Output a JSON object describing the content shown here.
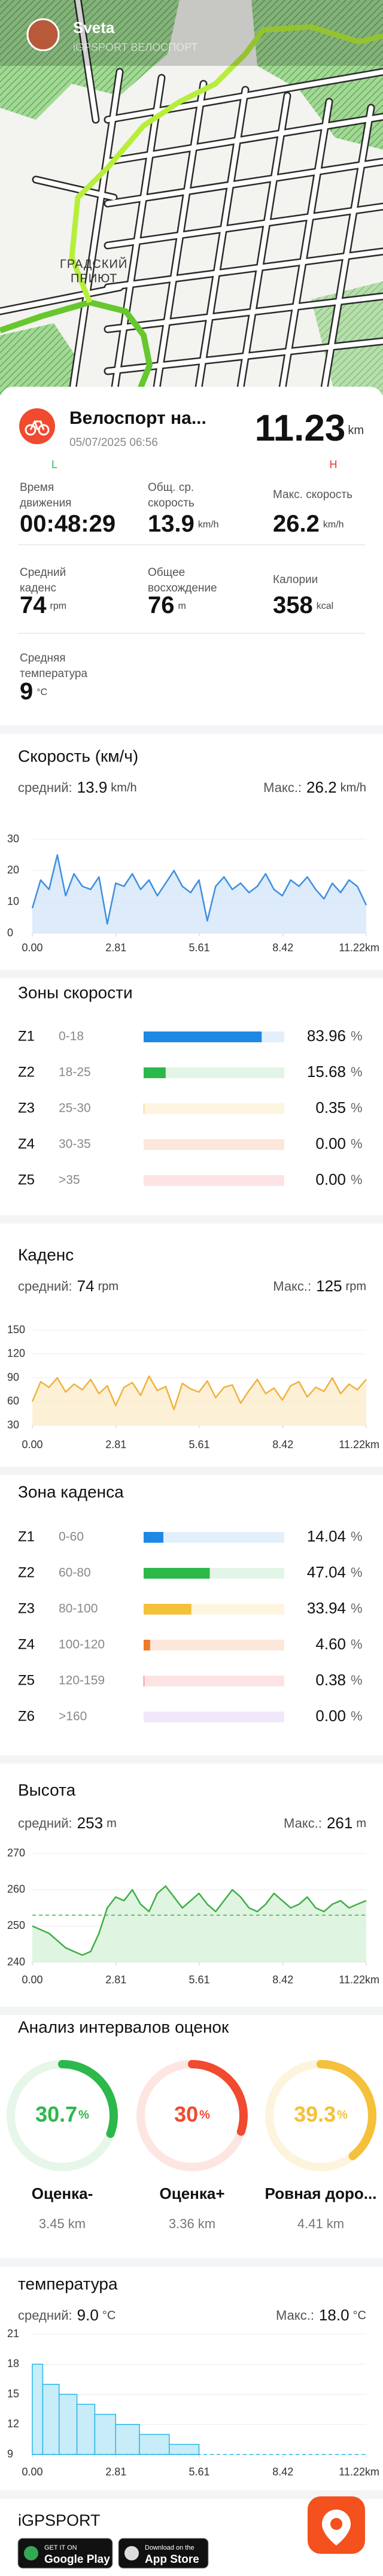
{
  "map": {
    "user": "Sveta",
    "subtitle": "iGPSPORT ВЕЛОСПОРТ",
    "place": [
      "ГРАДСКИЙ",
      "ПРИЮТ"
    ]
  },
  "activity": {
    "title": "Велоспорт на...",
    "date": "05/07/2025 06:56",
    "distance": 11.23,
    "unit": "km",
    "low": "L",
    "high": "H"
  },
  "stats": [
    {
      "label": [
        "Время",
        "движения"
      ],
      "value": "00:48:29"
    },
    {
      "label": [
        "Общ. ср.",
        "скорость"
      ],
      "value": 13.9,
      "unit": "km/h"
    },
    {
      "label": [
        "Макс. скорость"
      ],
      "value": 26.2,
      "unit": "km/h"
    },
    {
      "label": [
        "Средний",
        "каденс"
      ],
      "value": 74,
      "unit": "rpm"
    },
    {
      "label": [
        "Общее",
        "восхождение"
      ],
      "value": 76,
      "unit": "m"
    },
    {
      "label": [
        "Калории"
      ],
      "value": 358,
      "unit": "kcal"
    },
    {
      "label": [
        "Средняя",
        "температура"
      ],
      "value": 9,
      "unit": "°C"
    }
  ],
  "speed_chart": {
    "type": "area",
    "title": "Скорость (км/ч)",
    "avg_label": "средний:",
    "avg": 13.9,
    "max_label": "Макс.:",
    "max": 26.2,
    "unit": "km/h",
    "color": "#3d8fe0",
    "fill": "#cfe3f8",
    "avg_line": false,
    "grid": true,
    "x": [
      0,
      0.28,
      0.56,
      0.84,
      1.12,
      1.4,
      1.68,
      1.96,
      2.24,
      2.52,
      2.8,
      3.08,
      3.36,
      3.64,
      3.92,
      4.2,
      4.48,
      4.76,
      5.04,
      5.32,
      5.6,
      5.88,
      6.16,
      6.44,
      6.72,
      7,
      7.28,
      7.56,
      7.84,
      8.12,
      8.4,
      8.68,
      8.96,
      9.24,
      9.52,
      9.8,
      10.08,
      10.36,
      10.64,
      10.92,
      11.22
    ],
    "values": [
      8,
      17,
      14,
      25,
      12,
      19,
      15,
      14,
      18,
      3,
      16,
      15,
      19,
      14,
      17,
      12,
      16,
      20,
      15,
      13,
      17,
      4,
      15,
      18,
      14,
      16,
      13,
      15,
      19,
      14,
      12,
      17,
      15,
      18,
      14,
      11,
      16,
      13,
      17,
      15,
      9
    ],
    "xlim": [
      0,
      11.22
    ],
    "xticks": [
      {
        "value": 0,
        "label": "0.00"
      },
      2.81,
      5.61,
      8.42,
      {
        "value": 11.22,
        "label": "11.22km"
      }
    ],
    "ylim": [
      0,
      30
    ],
    "yticks": [
      0,
      10,
      20,
      30
    ]
  },
  "speed_zones": {
    "title": "Зоны скорости",
    "unit": "%",
    "zones": [
      {
        "name": "Z1",
        "range": "0-18",
        "value": 83.96,
        "value_label": "83.96",
        "color": "#1e88e5",
        "track": "#e3f0fb"
      },
      {
        "name": "Z2",
        "range": "18-25",
        "value": 15.68,
        "value_label": "15.68",
        "color": "#2db84b",
        "track": "#e3f5e6"
      },
      {
        "name": "Z3",
        "range": "25-30",
        "value": 0.35,
        "value_label": "0.35",
        "color": "#f5c03a",
        "track": "#fdf5e0"
      },
      {
        "name": "Z4",
        "range": "30-35",
        "value": 0,
        "value_label": "0.00",
        "color": "#f07a2a",
        "track": "#fde6da"
      },
      {
        "name": "Z5",
        "range": ">35",
        "value": 0,
        "value_label": "0.00",
        "color": "#f04a4a",
        "track": "#fde3e3"
      }
    ]
  },
  "cadence_chart": {
    "type": "area",
    "title": "Каденс",
    "avg_label": "средний:",
    "avg": 74,
    "max_label": "Макс.:",
    "max": 125,
    "unit": "rpm",
    "color": "#f0b23c",
    "fill": "#fbe9c6",
    "avg_line": false,
    "grid": true,
    "x": [
      0,
      0.28,
      0.56,
      0.84,
      1.12,
      1.4,
      1.68,
      1.96,
      2.24,
      2.52,
      2.8,
      3.08,
      3.36,
      3.64,
      3.92,
      4.2,
      4.48,
      4.76,
      5.04,
      5.32,
      5.6,
      5.88,
      6.16,
      6.44,
      6.72,
      7,
      7.28,
      7.56,
      7.84,
      8.12,
      8.4,
      8.68,
      8.96,
      9.24,
      9.52,
      9.8,
      10.08,
      10.36,
      10.64,
      10.92,
      11.22
    ],
    "values": [
      60,
      85,
      78,
      90,
      72,
      82,
      75,
      88,
      70,
      80,
      55,
      78,
      84,
      68,
      92,
      74,
      79,
      50,
      83,
      76,
      72,
      86,
      65,
      78,
      81,
      58,
      74,
      88,
      70,
      77,
      62,
      80,
      85,
      66,
      78,
      73,
      90,
      70,
      82,
      75,
      88
    ],
    "xlim": [
      0,
      11.22
    ],
    "xticks": [
      {
        "value": 0,
        "label": "0.00"
      },
      2.81,
      5.61,
      8.42,
      {
        "value": 11.22,
        "label": "11.22km"
      }
    ],
    "ylim": [
      30,
      150
    ],
    "yticks": [
      30,
      60,
      90,
      120,
      150
    ]
  },
  "cadence_zones": {
    "title": "Зона каденса",
    "unit": "%",
    "zones": [
      {
        "name": "Z1",
        "range": "0-60",
        "value": 14.04,
        "value_label": "14.04",
        "color": "#1e88e5",
        "track": "#e3f0fb"
      },
      {
        "name": "Z2",
        "range": "60-80",
        "value": 47.04,
        "value_label": "47.04",
        "color": "#2db84b",
        "track": "#e3f5e6"
      },
      {
        "name": "Z3",
        "range": "80-100",
        "value": 33.94,
        "value_label": "33.94",
        "color": "#f5c03a",
        "track": "#fdf5e0"
      },
      {
        "name": "Z4",
        "range": "100-120",
        "value": 4.6,
        "value_label": "4.60",
        "color": "#f07a2a",
        "track": "#fde6da"
      },
      {
        "name": "Z5",
        "range": "120-159",
        "value": 0.38,
        "value_label": "0.38",
        "color": "#f04a4a",
        "track": "#fde3e3"
      },
      {
        "name": "Z6",
        "range": ">160",
        "value": 0,
        "value_label": "0.00",
        "color": "#a864e0",
        "track": "#f1e7fb"
      }
    ]
  },
  "altitude_chart": {
    "type": "area",
    "title": "Высота",
    "avg_label": "средний:",
    "avg": 253,
    "max_label": "Макс.:",
    "max": 261,
    "unit": "m",
    "color": "#3cb043",
    "fill": "#d3efd6",
    "avg_line": true,
    "grid": true,
    "x": [
      0,
      0.28,
      0.56,
      0.84,
      1.12,
      1.4,
      1.68,
      1.96,
      2.24,
      2.52,
      2.8,
      3.08,
      3.36,
      3.64,
      3.92,
      4.2,
      4.48,
      4.76,
      5.04,
      5.32,
      5.6,
      5.88,
      6.16,
      6.44,
      6.72,
      7,
      7.28,
      7.56,
      7.84,
      8.12,
      8.4,
      8.68,
      8.96,
      9.24,
      9.52,
      9.8,
      10.08,
      10.36,
      10.64,
      10.92,
      11.22
    ],
    "values": [
      250,
      249,
      248,
      246,
      244,
      243,
      242,
      243,
      248,
      255,
      258,
      257,
      260,
      256,
      254,
      259,
      261,
      258,
      255,
      257,
      259,
      256,
      254,
      257,
      260,
      258,
      255,
      254,
      256,
      259,
      257,
      255,
      256,
      258,
      255,
      254,
      256,
      257,
      255,
      256,
      257
    ],
    "xlim": [
      0,
      11.22
    ],
    "xticks": [
      {
        "value": 0,
        "label": "0.00"
      },
      2.81,
      5.61,
      8.42,
      {
        "value": 11.22,
        "label": "11.22km"
      }
    ],
    "ylim": [
      240,
      270
    ],
    "yticks": [
      240,
      250,
      260,
      270
    ]
  },
  "grade_analysis": {
    "title": "Анализ интервалов оценок",
    "unit": "%",
    "distance_unit": "km",
    "items": [
      {
        "name": "Оценка-",
        "value": 30.7,
        "distance": 3.45,
        "color": "#2db84b",
        "track": "#e6f6e9"
      },
      {
        "name": "Оценка+",
        "value": 30,
        "distance": 3.36,
        "color": "#f04a2f",
        "track": "#fde6e2"
      },
      {
        "name": "Ровная доро...",
        "value": 39.3,
        "distance": 4.41,
        "color": "#f5c03a",
        "track": "#fdf4dd"
      }
    ]
  },
  "temperature_chart": {
    "type": "step",
    "title": "температура",
    "avg_label": "средний:",
    "avg": {
      "value": 9,
      "label": "9.0"
    },
    "max_label": "Макс.:",
    "max": {
      "value": 18,
      "label": "18.0"
    },
    "unit": "°C",
    "color": "#29b6e8",
    "fill": "#c8ecf8",
    "avg_line": true,
    "grid": true,
    "bins": [
      0,
      0.35,
      0.9,
      1.5,
      2.1,
      2.8,
      3.6,
      4.6,
      5.6,
      11.22
    ],
    "values": [
      18,
      16,
      15,
      14,
      13,
      12,
      11,
      10,
      9
    ],
    "xlim": [
      0,
      11.22
    ],
    "xticks": [
      {
        "value": 0,
        "label": "0.00"
      },
      2.81,
      5.61,
      8.42,
      {
        "value": 11.22,
        "label": "11.22km"
      }
    ],
    "ylim": [
      9,
      21
    ],
    "yticks": [
      9,
      12,
      15,
      18,
      21
    ]
  },
  "footer": {
    "brand": "iGPSPORT",
    "google": [
      "GET IT ON",
      "Google Play"
    ],
    "apple": [
      "Download on the",
      "App Store"
    ]
  }
}
